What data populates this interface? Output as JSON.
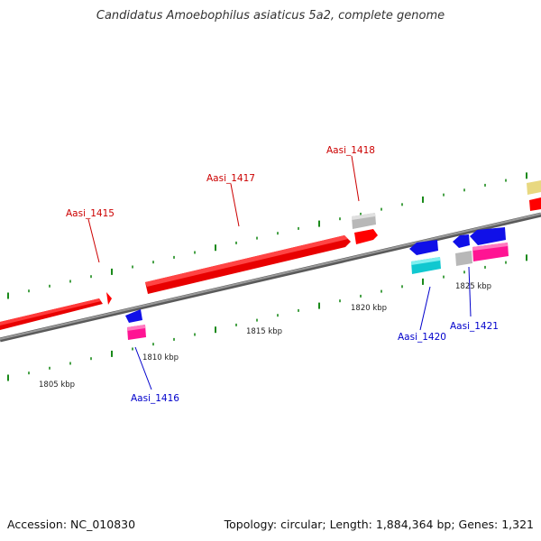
{
  "title": "Candidatus Amoebophilus asiaticus 5a2, complete genome",
  "footer": {
    "accession": "Accession: NC_010830",
    "summary": "Topology: circular; Length: 1,884,364 bp; Genes: 1,321"
  },
  "colors": {
    "backbone": "#808080",
    "gene_red": "#ff0000",
    "gene_blue": "#1010e8",
    "gene_gray": "#c8c8c8",
    "gene_cyan": "#10d0d8",
    "gene_magenta": "#ff1493",
    "gene_khaki": "#f0e68c",
    "tick_green": "#1a8a1a",
    "label_forward": "#cc0000",
    "label_reverse": "#0000cc"
  },
  "scale_labels": [
    "1805 kbp",
    "1810 kbp",
    "1815 kbp",
    "1820 kbp",
    "1825 kbp"
  ],
  "gene_labels": [
    {
      "text": "Aasi_1415",
      "strand": "forward"
    },
    {
      "text": "Aasi_1416",
      "strand": "reverse"
    },
    {
      "text": "Aasi_1417",
      "strand": "forward"
    },
    {
      "text": "Aasi_1418",
      "strand": "forward"
    },
    {
      "text": "Aasi_1420",
      "strand": "reverse"
    },
    {
      "text": "Aasi_1421",
      "strand": "reverse"
    }
  ]
}
